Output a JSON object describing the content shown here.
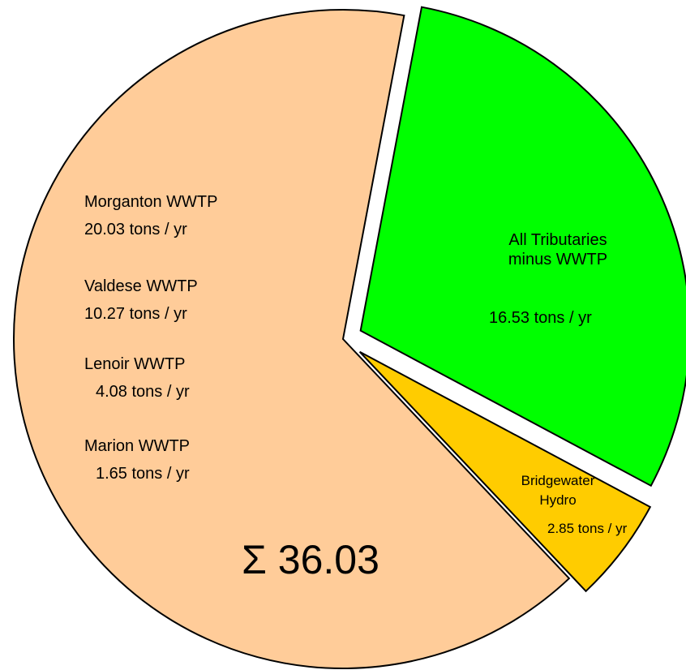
{
  "chart_data": {
    "type": "pie",
    "categories": [
      "All Tributaries minus WWTP",
      "Bridgewater Hydro",
      null
    ],
    "values": [
      16.53,
      2.85,
      36.03
    ],
    "value_labels": [
      "16.53 tons / yr",
      "2.85 tons / yr",
      "Σ 36.03"
    ],
    "colors": [
      "#00ff00",
      "#ffcc00",
      "#ffcc99"
    ],
    "annotations": [
      {
        "name": "Morganton WWTP",
        "label": "20.03 tons / yr"
      },
      {
        "name": "Valdese WWTP",
        "label": "10.27 tons / yr"
      },
      {
        "name": "Lenoir WWTP",
        "label": "4.08 tons / yr"
      },
      {
        "name": "Marion WWTP",
        "label": "1.65 tons / yr"
      }
    ]
  }
}
